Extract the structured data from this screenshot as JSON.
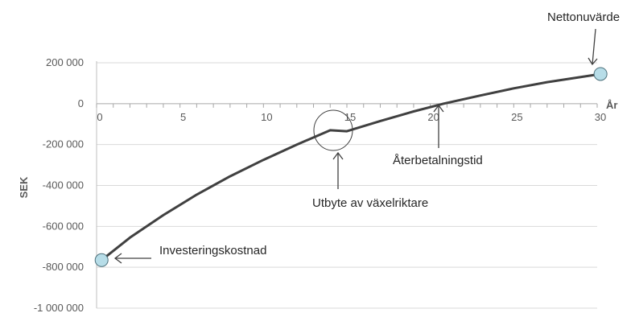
{
  "chart_data": {
    "type": "line",
    "xlabel": "År",
    "ylabel": "SEK",
    "xlim": [
      0,
      30
    ],
    "ylim": [
      -1000000,
      200000
    ],
    "x_ticks": [
      {
        "value": 0,
        "label": "0"
      },
      {
        "value": 5,
        "label": "5"
      },
      {
        "value": 10,
        "label": "10"
      },
      {
        "value": 15,
        "label": "15"
      },
      {
        "value": 20,
        "label": "20"
      },
      {
        "value": 25,
        "label": "25"
      },
      {
        "value": 30,
        "label": "30"
      }
    ],
    "y_ticks": [
      {
        "value": 200000,
        "label": "200 000"
      },
      {
        "value": 0,
        "label": "0"
      },
      {
        "value": -200000,
        "label": "-200 000"
      },
      {
        "value": -400000,
        "label": "-400 000"
      },
      {
        "value": -600000,
        "label": "-600 000"
      },
      {
        "value": -800000,
        "label": "-800 000"
      },
      {
        "value": -1000000,
        "label": "-1 000 000"
      }
    ],
    "grid": true,
    "series": [
      {
        "color": "#404040",
        "points": [
          {
            "x": 0.3,
            "y": -765000
          },
          {
            "x": 2,
            "y": -655000
          },
          {
            "x": 4,
            "y": -545000
          },
          {
            "x": 6,
            "y": -445000
          },
          {
            "x": 8,
            "y": -355000
          },
          {
            "x": 10,
            "y": -275000
          },
          {
            "x": 12,
            "y": -200000
          },
          {
            "x": 14,
            "y": -130000
          },
          {
            "x": 15,
            "y": -135000
          },
          {
            "x": 17,
            "y": -85000
          },
          {
            "x": 19,
            "y": -38000
          },
          {
            "x": 20.8,
            "y": 0
          },
          {
            "x": 23,
            "y": 40000
          },
          {
            "x": 25,
            "y": 75000
          },
          {
            "x": 27,
            "y": 105000
          },
          {
            "x": 30.2,
            "y": 145000
          }
        ]
      }
    ],
    "markers": [
      {
        "name": "investment-marker",
        "x": 0.3,
        "y": -765000,
        "fill": "#b7dde8",
        "stroke": "#4b6f7a"
      },
      {
        "name": "npv-marker",
        "x": 30.2,
        "y": 145000,
        "fill": "#b7dde8",
        "stroke": "#4b6f7a"
      }
    ],
    "annotations": [
      {
        "name": "investment-annotation",
        "text": "Investeringskostnad"
      },
      {
        "name": "inverter-annotation",
        "text": "Utbyte av växelriktare"
      },
      {
        "name": "payback-annotation",
        "text": "Återbetalningstid"
      },
      {
        "name": "npv-annotation",
        "text": "Nettonuvärde"
      }
    ]
  }
}
